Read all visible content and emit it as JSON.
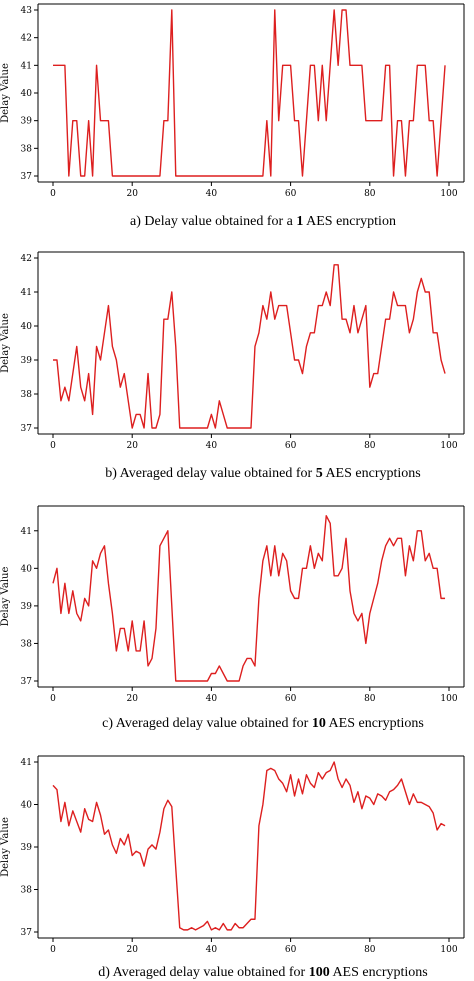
{
  "chart_data": [
    {
      "type": "line",
      "ylabel": "Delay Value",
      "xlim": [
        0,
        100
      ],
      "ylim": [
        37,
        43
      ],
      "xticks": [
        0,
        20,
        40,
        60,
        80,
        100
      ],
      "yticks": [
        37,
        38,
        39,
        40,
        41,
        42,
        43
      ],
      "color": "#dd1f1f",
      "caption": {
        "pre": "a) Delay value obtained for a ",
        "bold": "1",
        "post": " AES encryption"
      },
      "x": [
        0,
        1,
        2,
        3,
        4,
        5,
        6,
        7,
        8,
        9,
        10,
        11,
        12,
        13,
        14,
        15,
        16,
        17,
        18,
        19,
        20,
        21,
        22,
        23,
        24,
        25,
        26,
        27,
        28,
        29,
        30,
        31,
        32,
        33,
        34,
        35,
        36,
        37,
        38,
        39,
        40,
        41,
        42,
        43,
        44,
        45,
        46,
        47,
        48,
        49,
        50,
        51,
        52,
        53,
        54,
        55,
        56,
        57,
        58,
        59,
        60,
        61,
        62,
        63,
        64,
        65,
        66,
        67,
        68,
        69,
        70,
        71,
        72,
        73,
        74,
        75,
        76,
        77,
        78,
        79,
        80,
        81,
        82,
        83,
        84,
        85,
        86,
        87,
        88,
        89,
        90,
        91,
        92,
        93,
        94,
        95,
        96,
        97,
        98,
        99
      ],
      "values": [
        41,
        41,
        41,
        41,
        37,
        39,
        39,
        37,
        37,
        39,
        37,
        41,
        39,
        39,
        39,
        37,
        37,
        37,
        37,
        37,
        37,
        37,
        37,
        37,
        37,
        37,
        37,
        37,
        39,
        39,
        43,
        37,
        37,
        37,
        37,
        37,
        37,
        37,
        37,
        37,
        37,
        37,
        37,
        37,
        37,
        37,
        37,
        37,
        37,
        37,
        37,
        37,
        37,
        37,
        39,
        37,
        43,
        39,
        41,
        41,
        41,
        39,
        39,
        37,
        39,
        41,
        41,
        39,
        41,
        39,
        41,
        43,
        41,
        43,
        43,
        41,
        41,
        41,
        41,
        39,
        39,
        39,
        39,
        39,
        41,
        41,
        37,
        39,
        39,
        37,
        39,
        39,
        41,
        41,
        41,
        39,
        39,
        37,
        39,
        41
      ]
    },
    {
      "type": "line",
      "ylabel": "Delay Value",
      "xlim": [
        0,
        100
      ],
      "ylim": [
        37,
        42
      ],
      "xticks": [
        0,
        20,
        40,
        60,
        80,
        100
      ],
      "yticks": [
        37,
        38,
        39,
        40,
        41,
        42
      ],
      "color": "#dd1f1f",
      "caption": {
        "pre": "b) Averaged delay value obtained for ",
        "bold": "5",
        "post": " AES encryptions"
      },
      "x": [
        0,
        1,
        2,
        3,
        4,
        5,
        6,
        7,
        8,
        9,
        10,
        11,
        12,
        13,
        14,
        15,
        16,
        17,
        18,
        19,
        20,
        21,
        22,
        23,
        24,
        25,
        26,
        27,
        28,
        29,
        30,
        31,
        32,
        33,
        34,
        35,
        36,
        37,
        38,
        39,
        40,
        41,
        42,
        43,
        44,
        45,
        46,
        47,
        48,
        49,
        50,
        51,
        52,
        53,
        54,
        55,
        56,
        57,
        58,
        59,
        60,
        61,
        62,
        63,
        64,
        65,
        66,
        67,
        68,
        69,
        70,
        71,
        72,
        73,
        74,
        75,
        76,
        77,
        78,
        79,
        80,
        81,
        82,
        83,
        84,
        85,
        86,
        87,
        88,
        89,
        90,
        91,
        92,
        93,
        94,
        95,
        96,
        97,
        98,
        99
      ],
      "values": [
        39,
        39,
        37.8,
        38.2,
        37.8,
        38.6,
        39.4,
        38.2,
        37.8,
        38.6,
        37.4,
        39.4,
        39,
        39.8,
        40.6,
        39.4,
        39,
        38.2,
        38.6,
        37.8,
        37,
        37.4,
        37.4,
        37,
        38.6,
        37,
        37,
        37.4,
        40.2,
        40.2,
        41,
        39.4,
        37,
        37,
        37,
        37,
        37,
        37,
        37,
        37,
        37.4,
        37,
        37.8,
        37.4,
        37,
        37,
        37,
        37,
        37,
        37,
        37,
        39.4,
        39.8,
        40.6,
        40.2,
        41,
        40.2,
        40.6,
        40.6,
        40.6,
        39.8,
        39,
        39,
        38.6,
        39.4,
        39.8,
        39.8,
        40.6,
        40.6,
        41,
        40.6,
        41.8,
        41.8,
        40.2,
        40.2,
        39.8,
        40.6,
        39.8,
        40.2,
        40.6,
        38.2,
        38.6,
        38.6,
        39.4,
        40.2,
        40.2,
        41,
        40.6,
        40.6,
        40.6,
        39.8,
        40.2,
        41,
        41.4,
        41,
        41,
        39.8,
        39.8,
        39,
        38.6
      ]
    },
    {
      "type": "line",
      "ylabel": "Delay Value",
      "xlim": [
        0,
        100
      ],
      "ylim": [
        37,
        41.5
      ],
      "xticks": [
        0,
        20,
        40,
        60,
        80,
        100
      ],
      "yticks": [
        37,
        38,
        39,
        40,
        41
      ],
      "color": "#dd1f1f",
      "caption": {
        "pre": "c) Averaged delay value obtained for ",
        "bold": "10",
        "post": " AES encryptions"
      },
      "x": [
        0,
        1,
        2,
        3,
        4,
        5,
        6,
        7,
        8,
        9,
        10,
        11,
        12,
        13,
        14,
        15,
        16,
        17,
        18,
        19,
        20,
        21,
        22,
        23,
        24,
        25,
        26,
        27,
        28,
        29,
        30,
        31,
        32,
        33,
        34,
        35,
        36,
        37,
        38,
        39,
        40,
        41,
        42,
        43,
        44,
        45,
        46,
        47,
        48,
        49,
        50,
        51,
        52,
        53,
        54,
        55,
        56,
        57,
        58,
        59,
        60,
        61,
        62,
        63,
        64,
        65,
        66,
        67,
        68,
        69,
        70,
        71,
        72,
        73,
        74,
        75,
        76,
        77,
        78,
        79,
        80,
        81,
        82,
        83,
        84,
        85,
        86,
        87,
        88,
        89,
        90,
        91,
        92,
        93,
        94,
        95,
        96,
        97,
        98,
        99
      ],
      "values": [
        39.6,
        40,
        38.8,
        39.6,
        38.8,
        39.4,
        38.8,
        38.6,
        39.2,
        39,
        40.2,
        40,
        40.4,
        40.6,
        39.6,
        38.8,
        37.8,
        38.4,
        38.4,
        37.8,
        38.6,
        37.8,
        37.8,
        38.6,
        37.4,
        37.6,
        38.4,
        40.6,
        40.8,
        41,
        39,
        37,
        37,
        37,
        37,
        37,
        37,
        37,
        37,
        37,
        37.2,
        37.2,
        37.4,
        37.2,
        37,
        37,
        37,
        37,
        37.4,
        37.6,
        37.6,
        37.4,
        39.2,
        40.2,
        40.6,
        39.8,
        40.6,
        39.8,
        40.4,
        40.2,
        39.4,
        39.2,
        39.2,
        40,
        40,
        40.6,
        40,
        40.4,
        40.2,
        41.4,
        41.2,
        39.8,
        39.8,
        40,
        40.8,
        39.4,
        38.8,
        38.6,
        38.8,
        38,
        38.8,
        39.2,
        39.6,
        40.2,
        40.6,
        40.8,
        40.6,
        40.8,
        40.8,
        39.8,
        40.6,
        40.2,
        41,
        41,
        40.2,
        40.4,
        40,
        40,
        39.2,
        39.2
      ]
    },
    {
      "type": "line",
      "ylabel": "Delay Value",
      "xlim": [
        0,
        100
      ],
      "ylim": [
        37,
        41
      ],
      "xticks": [
        0,
        20,
        40,
        60,
        80,
        100
      ],
      "yticks": [
        37,
        38,
        39,
        40,
        41
      ],
      "color": "#dd1f1f",
      "caption": {
        "pre": "d) Averaged delay value obtained for ",
        "bold": "100",
        "post": " AES encryptions"
      },
      "x": [
        0,
        1,
        2,
        3,
        4,
        5,
        6,
        7,
        8,
        9,
        10,
        11,
        12,
        13,
        14,
        15,
        16,
        17,
        18,
        19,
        20,
        21,
        22,
        23,
        24,
        25,
        26,
        27,
        28,
        29,
        30,
        31,
        32,
        33,
        34,
        35,
        36,
        37,
        38,
        39,
        40,
        41,
        42,
        43,
        44,
        45,
        46,
        47,
        48,
        49,
        50,
        51,
        52,
        53,
        54,
        55,
        56,
        57,
        58,
        59,
        60,
        61,
        62,
        63,
        64,
        65,
        66,
        67,
        68,
        69,
        70,
        71,
        72,
        73,
        74,
        75,
        76,
        77,
        78,
        79,
        80,
        81,
        82,
        83,
        84,
        85,
        86,
        87,
        88,
        89,
        90,
        91,
        92,
        93,
        94,
        95,
        96,
        97,
        98,
        99
      ],
      "values": [
        40.45,
        40.35,
        39.6,
        40.05,
        39.5,
        39.85,
        39.6,
        39.35,
        39.9,
        39.65,
        39.6,
        40.05,
        39.75,
        39.3,
        39.4,
        39.05,
        38.85,
        39.2,
        39.05,
        39.3,
        38.8,
        38.9,
        38.85,
        38.55,
        38.95,
        39.05,
        38.95,
        39.35,
        39.9,
        40.1,
        39.95,
        38.5,
        37.1,
        37.05,
        37.05,
        37.1,
        37.05,
        37.1,
        37.15,
        37.25,
        37.05,
        37.1,
        37.05,
        37.2,
        37.05,
        37.05,
        37.2,
        37.1,
        37.1,
        37.2,
        37.3,
        37.3,
        39.5,
        40,
        40.8,
        40.85,
        40.8,
        40.6,
        40.5,
        40.3,
        40.7,
        40.2,
        40.6,
        40.25,
        40.7,
        40.5,
        40.4,
        40.75,
        40.6,
        40.75,
        40.8,
        41,
        40.6,
        40.4,
        40.6,
        40.45,
        40.05,
        40.3,
        39.9,
        40.2,
        40.15,
        40,
        40.25,
        40.2,
        40.1,
        40.3,
        40.35,
        40.45,
        40.6,
        40.3,
        40,
        40.25,
        40.05,
        40.05,
        40,
        39.95,
        39.8,
        39.4,
        39.55,
        39.5
      ]
    }
  ]
}
